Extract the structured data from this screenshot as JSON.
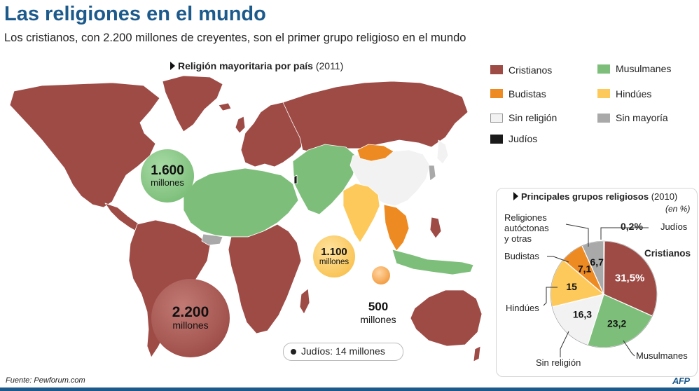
{
  "title": "Las religiones en el mundo",
  "subtitle": "Los cristianos, con 2.200 millones de creyentes, son el primer grupo religioso en el mundo",
  "map": {
    "heading": "Religión mayoritaria por país",
    "year": "(2011)"
  },
  "legend": [
    {
      "label": "Cristianos",
      "color": "#9e4b46"
    },
    {
      "label": "Musulmanes",
      "color": "#7dbf7a"
    },
    {
      "label": "Budistas",
      "color": "#ee8a22"
    },
    {
      "label": "Hindúes",
      "color": "#fdc95b"
    },
    {
      "label": "Sin religión",
      "color": "#f2f2f2"
    },
    {
      "label": "Sin mayoría",
      "color": "#a9a9a9"
    },
    {
      "label": "Judíos",
      "color": "#1a1a1a"
    }
  ],
  "bubbles": {
    "muslims": {
      "number": "1.600",
      "unit": "millones"
    },
    "christians": {
      "number": "2.200",
      "unit": "millones"
    },
    "hindus": {
      "number": "1.100",
      "unit": "millones"
    },
    "buddhists": {
      "number": "500",
      "unit": "millones"
    }
  },
  "jews_note": "Judíos: 14 millones",
  "pie": {
    "heading": "Principales grupos religiosos",
    "year": "(2010)",
    "unit": "(en %)"
  },
  "chart_data": {
    "type": "pie",
    "title": "Principales grupos religiosos (2010)",
    "unit": "(en %)",
    "slices": [
      {
        "label": "Judíos",
        "value": 0.2,
        "display": "0,2%",
        "color": "#1a1a1a"
      },
      {
        "label": "Cristianos",
        "value": 31.5,
        "display": "31,5%",
        "color": "#9e4b46"
      },
      {
        "label": "Musulmanes",
        "value": 23.2,
        "display": "23,2",
        "color": "#7dbf7a"
      },
      {
        "label": "Sin religión",
        "value": 16.3,
        "display": "16,3",
        "color": "#f2f2f2"
      },
      {
        "label": "Hindúes",
        "value": 15,
        "display": "15",
        "color": "#fdc95b"
      },
      {
        "label": "Budistas",
        "value": 7.1,
        "display": "7,1",
        "color": "#ee8a22"
      },
      {
        "label": "Religiones autóctonas y otras",
        "value": 6.7,
        "display": "6,7",
        "color": "#a9a9a9"
      }
    ]
  },
  "pie_labels": {
    "others_line1": "Religiones",
    "others_line2": "autóctonas",
    "others_line3": "y otras"
  },
  "source": "Fuente: Pewforum.com",
  "agency": "AFP"
}
